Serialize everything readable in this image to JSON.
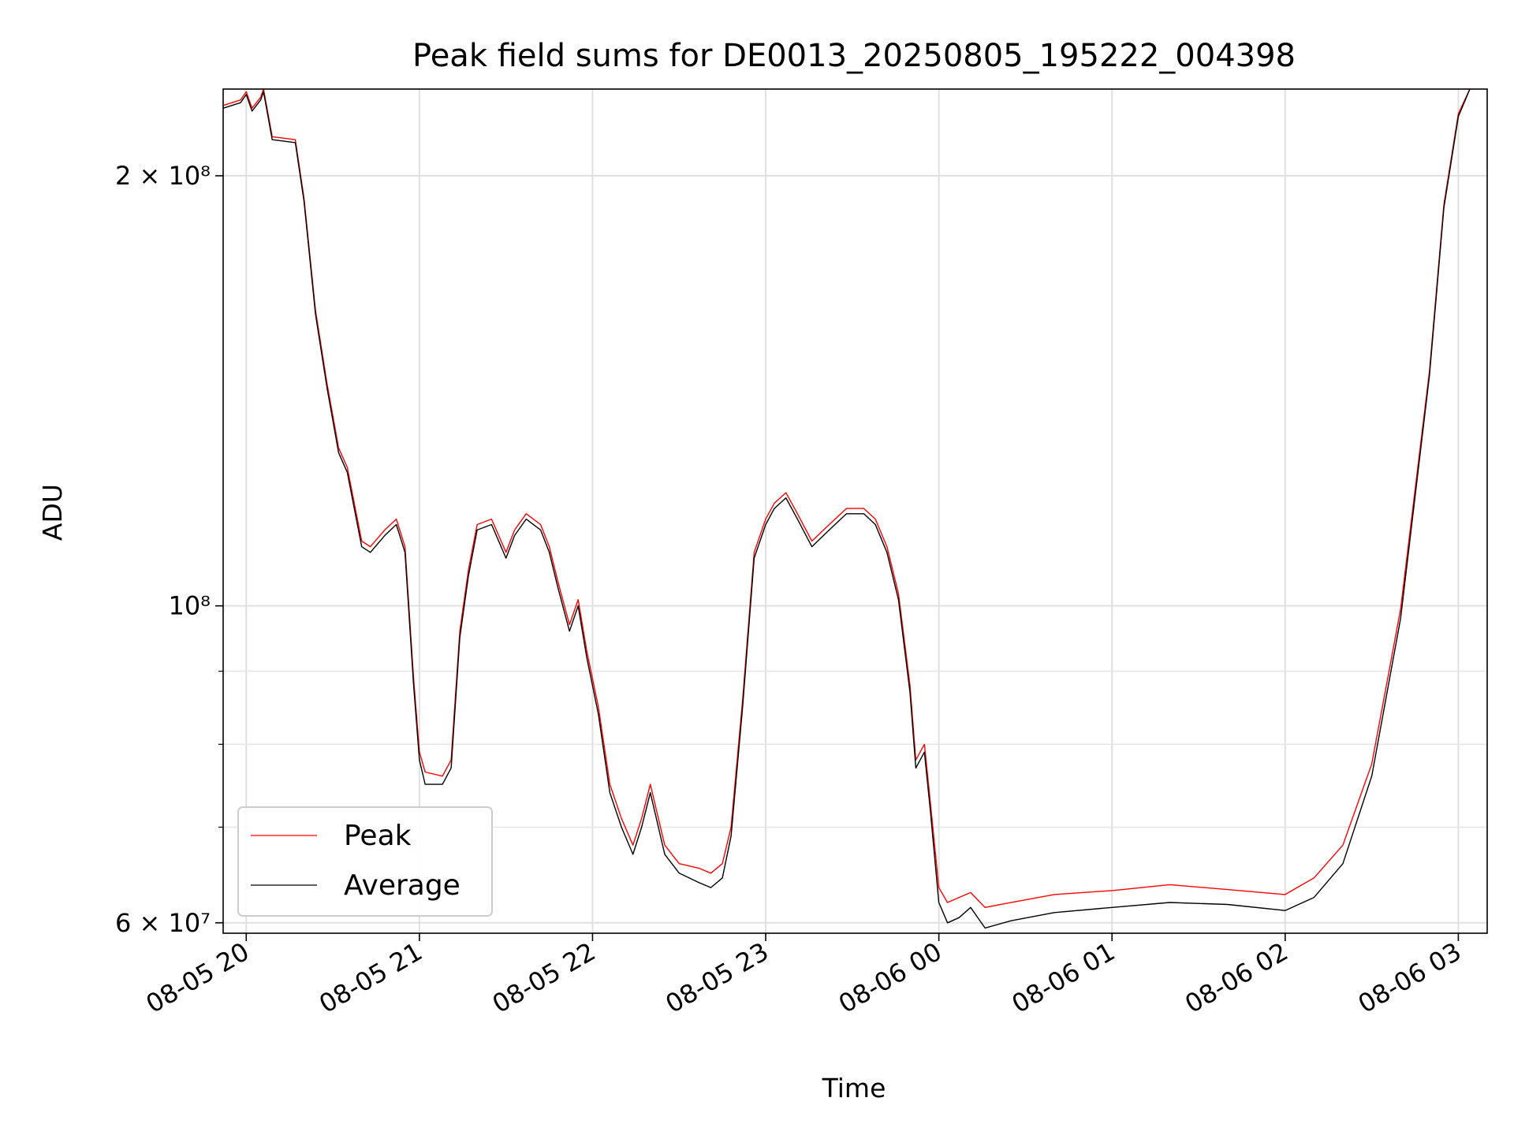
{
  "chart_data": {
    "type": "line",
    "title": "Peak field sums for DE0013_20250805_195222_004398",
    "xlabel": "Time",
    "ylabel": "ADU",
    "yscale": "log",
    "xlim": [
      "2025-08-05 19:52",
      "2025-08-06 03:10"
    ],
    "ylim": [
      59000000,
      230000000
    ],
    "grid": true,
    "legend": {
      "placement": "lower-left",
      "entries": [
        "Peak",
        "Average"
      ]
    },
    "x_ticks": [
      {
        "t": "2025-08-05 20:00",
        "label": "08-05 20"
      },
      {
        "t": "2025-08-05 21:00",
        "label": "08-05 21"
      },
      {
        "t": "2025-08-05 22:00",
        "label": "08-05 22"
      },
      {
        "t": "2025-08-05 23:00",
        "label": "08-05 23"
      },
      {
        "t": "2025-08-06 00:00",
        "label": "08-06 00"
      },
      {
        "t": "2025-08-06 01:00",
        "label": "08-06 01"
      },
      {
        "t": "2025-08-06 02:00",
        "label": "08-06 02"
      },
      {
        "t": "2025-08-06 03:00",
        "label": "08-06 03"
      }
    ],
    "y_major_ticks": [
      {
        "value": 60000000,
        "label": "6 × 10⁷"
      },
      {
        "value": 100000000,
        "label": "10⁸"
      },
      {
        "value": 200000000,
        "label": "2 × 10⁸"
      }
    ],
    "y_minor_ticks": [
      70000000,
      80000000,
      90000000
    ],
    "series": [
      {
        "name": "Average",
        "color": "#000000",
        "points": [
          [
            "2025-08-05 19:52",
            223000000
          ],
          [
            "2025-08-05 19:58",
            225000000
          ],
          [
            "2025-08-05 20:00",
            228000000
          ],
          [
            "2025-08-05 20:02",
            222000000
          ],
          [
            "2025-08-05 20:05",
            226000000
          ],
          [
            "2025-08-05 20:06",
            229000000
          ],
          [
            "2025-08-05 20:09",
            212000000
          ],
          [
            "2025-08-05 20:17",
            211000000
          ],
          [
            "2025-08-05 20:20",
            192000000
          ],
          [
            "2025-08-05 20:24",
            160000000
          ],
          [
            "2025-08-05 20:28",
            142000000
          ],
          [
            "2025-08-05 20:32",
            128000000
          ],
          [
            "2025-08-05 20:35",
            124000000
          ],
          [
            "2025-08-05 20:40",
            110000000
          ],
          [
            "2025-08-05 20:43",
            109000000
          ],
          [
            "2025-08-05 20:48",
            112000000
          ],
          [
            "2025-08-05 20:52",
            114000000
          ],
          [
            "2025-08-05 20:55",
            109000000
          ],
          [
            "2025-08-05 20:58",
            88000000
          ],
          [
            "2025-08-05 21:00",
            78000000
          ],
          [
            "2025-08-05 21:02",
            75000000
          ],
          [
            "2025-08-05 21:08",
            75000000
          ],
          [
            "2025-08-05 21:11",
            77000000
          ],
          [
            "2025-08-05 21:14",
            95000000
          ],
          [
            "2025-08-05 21:17",
            105000000
          ],
          [
            "2025-08-05 21:20",
            113000000
          ],
          [
            "2025-08-05 21:25",
            114000000
          ],
          [
            "2025-08-05 21:30",
            108000000
          ],
          [
            "2025-08-05 21:33",
            112000000
          ],
          [
            "2025-08-05 21:37",
            115000000
          ],
          [
            "2025-08-05 21:42",
            113000000
          ],
          [
            "2025-08-05 21:45",
            109000000
          ],
          [
            "2025-08-05 21:48",
            103000000
          ],
          [
            "2025-08-05 21:52",
            96000000
          ],
          [
            "2025-08-05 21:55",
            100000000
          ],
          [
            "2025-08-05 21:58",
            92000000
          ],
          [
            "2025-08-05 22:02",
            84000000
          ],
          [
            "2025-08-05 22:06",
            74000000
          ],
          [
            "2025-08-05 22:10",
            70000000
          ],
          [
            "2025-08-05 22:14",
            67000000
          ],
          [
            "2025-08-05 22:17",
            70000000
          ],
          [
            "2025-08-05 22:20",
            74000000
          ],
          [
            "2025-08-05 22:25",
            67000000
          ],
          [
            "2025-08-05 22:30",
            65000000
          ],
          [
            "2025-08-05 22:37",
            64000000
          ],
          [
            "2025-08-05 22:41",
            63500000
          ],
          [
            "2025-08-05 22:45",
            64500000
          ],
          [
            "2025-08-05 22:48",
            69000000
          ],
          [
            "2025-08-05 22:52",
            85000000
          ],
          [
            "2025-08-05 22:56",
            108000000
          ],
          [
            "2025-08-05 23:00",
            114000000
          ],
          [
            "2025-08-05 23:03",
            117000000
          ],
          [
            "2025-08-05 23:07",
            119000000
          ],
          [
            "2025-08-05 23:11",
            115000000
          ],
          [
            "2025-08-05 23:16",
            110000000
          ],
          [
            "2025-08-05 23:22",
            113000000
          ],
          [
            "2025-08-05 23:28",
            116000000
          ],
          [
            "2025-08-05 23:34",
            116000000
          ],
          [
            "2025-08-05 23:38",
            114000000
          ],
          [
            "2025-08-05 23:42",
            109000000
          ],
          [
            "2025-08-05 23:46",
            101000000
          ],
          [
            "2025-08-05 23:50",
            87000000
          ],
          [
            "2025-08-05 23:52",
            77000000
          ],
          [
            "2025-08-05 23:55",
            79000000
          ],
          [
            "2025-08-05 23:57",
            72000000
          ],
          [
            "2025-08-06 00:00",
            62000000
          ],
          [
            "2025-08-06 00:03",
            60000000
          ],
          [
            "2025-08-06 00:07",
            60500000
          ],
          [
            "2025-08-06 00:11",
            61500000
          ],
          [
            "2025-08-06 00:16",
            59500000
          ],
          [
            "2025-08-06 00:25",
            60200000
          ],
          [
            "2025-08-06 00:40",
            61000000
          ],
          [
            "2025-08-06 01:00",
            61500000
          ],
          [
            "2025-08-06 01:20",
            62000000
          ],
          [
            "2025-08-06 01:40",
            61800000
          ],
          [
            "2025-08-06 02:00",
            61200000
          ],
          [
            "2025-08-06 02:10",
            62500000
          ],
          [
            "2025-08-06 02:20",
            66000000
          ],
          [
            "2025-08-06 02:30",
            76000000
          ],
          [
            "2025-08-06 02:40",
            98000000
          ],
          [
            "2025-08-06 02:50",
            145000000
          ],
          [
            "2025-08-06 02:55",
            190000000
          ],
          [
            "2025-08-06 03:00",
            220000000
          ],
          [
            "2025-08-06 03:04",
            230000000
          ]
        ]
      },
      {
        "name": "Peak",
        "color": "#ff0000",
        "points": [
          [
            "2025-08-05 19:52",
            224000000
          ],
          [
            "2025-08-05 19:58",
            226000000
          ],
          [
            "2025-08-05 20:00",
            229000000
          ],
          [
            "2025-08-05 20:02",
            223000000
          ],
          [
            "2025-08-05 20:05",
            227000000
          ],
          [
            "2025-08-05 20:06",
            230000000
          ],
          [
            "2025-08-05 20:09",
            213000000
          ],
          [
            "2025-08-05 20:17",
            212000000
          ],
          [
            "2025-08-05 20:20",
            193000000
          ],
          [
            "2025-08-05 20:24",
            161000000
          ],
          [
            "2025-08-05 20:28",
            143000000
          ],
          [
            "2025-08-05 20:32",
            129000000
          ],
          [
            "2025-08-05 20:35",
            125000000
          ],
          [
            "2025-08-05 20:40",
            111000000
          ],
          [
            "2025-08-05 20:43",
            110000000
          ],
          [
            "2025-08-05 20:48",
            113000000
          ],
          [
            "2025-08-05 20:52",
            115000000
          ],
          [
            "2025-08-05 20:55",
            110000000
          ],
          [
            "2025-08-05 20:58",
            89000000
          ],
          [
            "2025-08-05 21:00",
            79000000
          ],
          [
            "2025-08-05 21:02",
            76500000
          ],
          [
            "2025-08-05 21:08",
            76000000
          ],
          [
            "2025-08-05 21:11",
            78000000
          ],
          [
            "2025-08-05 21:14",
            96000000
          ],
          [
            "2025-08-05 21:17",
            106000000
          ],
          [
            "2025-08-05 21:20",
            114000000
          ],
          [
            "2025-08-05 21:25",
            115000000
          ],
          [
            "2025-08-05 21:30",
            109000000
          ],
          [
            "2025-08-05 21:33",
            113000000
          ],
          [
            "2025-08-05 21:37",
            116000000
          ],
          [
            "2025-08-05 21:42",
            114000000
          ],
          [
            "2025-08-05 21:45",
            110000000
          ],
          [
            "2025-08-05 21:48",
            104000000
          ],
          [
            "2025-08-05 21:52",
            97000000
          ],
          [
            "2025-08-05 21:55",
            101000000
          ],
          [
            "2025-08-05 21:58",
            93000000
          ],
          [
            "2025-08-05 22:02",
            85000000
          ],
          [
            "2025-08-05 22:06",
            75000000
          ],
          [
            "2025-08-05 22:10",
            71000000
          ],
          [
            "2025-08-05 22:14",
            68000000
          ],
          [
            "2025-08-05 22:17",
            71000000
          ],
          [
            "2025-08-05 22:20",
            75000000
          ],
          [
            "2025-08-05 22:25",
            68000000
          ],
          [
            "2025-08-05 22:30",
            66000000
          ],
          [
            "2025-08-05 22:37",
            65500000
          ],
          [
            "2025-08-05 22:41",
            65000000
          ],
          [
            "2025-08-05 22:45",
            66000000
          ],
          [
            "2025-08-05 22:48",
            70000000
          ],
          [
            "2025-08-05 22:52",
            86000000
          ],
          [
            "2025-08-05 22:56",
            109000000
          ],
          [
            "2025-08-05 23:00",
            115000000
          ],
          [
            "2025-08-05 23:03",
            118000000
          ],
          [
            "2025-08-05 23:07",
            120000000
          ],
          [
            "2025-08-05 23:11",
            116000000
          ],
          [
            "2025-08-05 23:16",
            111000000
          ],
          [
            "2025-08-05 23:22",
            114000000
          ],
          [
            "2025-08-05 23:28",
            117000000
          ],
          [
            "2025-08-05 23:34",
            117000000
          ],
          [
            "2025-08-05 23:38",
            115000000
          ],
          [
            "2025-08-05 23:42",
            110000000
          ],
          [
            "2025-08-05 23:46",
            102000000
          ],
          [
            "2025-08-05 23:50",
            88000000
          ],
          [
            "2025-08-05 23:52",
            78000000
          ],
          [
            "2025-08-05 23:55",
            80000000
          ],
          [
            "2025-08-05 23:57",
            73000000
          ],
          [
            "2025-08-06 00:00",
            63500000
          ],
          [
            "2025-08-06 00:03",
            62000000
          ],
          [
            "2025-08-06 00:07",
            62500000
          ],
          [
            "2025-08-06 00:11",
            63000000
          ],
          [
            "2025-08-06 00:16",
            61500000
          ],
          [
            "2025-08-06 00:25",
            62000000
          ],
          [
            "2025-08-06 00:40",
            62800000
          ],
          [
            "2025-08-06 01:00",
            63200000
          ],
          [
            "2025-08-06 01:20",
            63800000
          ],
          [
            "2025-08-06 01:40",
            63300000
          ],
          [
            "2025-08-06 02:00",
            62800000
          ],
          [
            "2025-08-06 02:10",
            64500000
          ],
          [
            "2025-08-06 02:20",
            68000000
          ],
          [
            "2025-08-06 02:30",
            77500000
          ],
          [
            "2025-08-06 02:40",
            99500000
          ],
          [
            "2025-08-06 02:50",
            146000000
          ],
          [
            "2025-08-06 02:55",
            191000000
          ],
          [
            "2025-08-06 03:00",
            221000000
          ],
          [
            "2025-08-06 03:04",
            230000000
          ]
        ]
      }
    ]
  }
}
